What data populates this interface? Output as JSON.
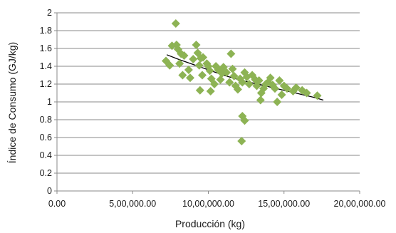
{
  "chart_data": {
    "type": "scatter",
    "xlabel": "Producción (kg)",
    "ylabel": "Índice de Consumo (GJ/kg)",
    "xlim": [
      0,
      2000000
    ],
    "ylim": [
      0,
      2
    ],
    "x_ticks": [
      0,
      500000,
      1000000,
      1500000,
      2000000
    ],
    "x_tick_labels": [
      "0.00",
      "5,00,000.00",
      "10,00,000.00",
      "15,00,000.00",
      "20,00,000.00"
    ],
    "y_ticks": [
      0,
      0.2,
      0.4,
      0.6,
      0.8,
      1,
      1.2,
      1.4,
      1.6,
      1.8,
      2
    ],
    "y_tick_labels": [
      "0",
      "0.2",
      "0.4",
      "0.6",
      "0.8",
      "1",
      "1.2",
      "1.4",
      "1.6",
      "1.8",
      "2"
    ],
    "grid": "horizontal",
    "legend": "none",
    "marker": "diamond",
    "marker_color": "#8db354",
    "trendline_color": "#000000",
    "points": [
      [
        785000,
        1.88
      ],
      [
        760000,
        1.63
      ],
      [
        790000,
        1.64
      ],
      [
        720000,
        1.46
      ],
      [
        745000,
        1.41
      ],
      [
        800000,
        1.59
      ],
      [
        820000,
        1.54
      ],
      [
        840000,
        1.52
      ],
      [
        810000,
        1.43
      ],
      [
        830000,
        1.3
      ],
      [
        870000,
        1.36
      ],
      [
        880000,
        1.27
      ],
      [
        900000,
        1.48
      ],
      [
        920000,
        1.64
      ],
      [
        930000,
        1.55
      ],
      [
        950000,
        1.49
      ],
      [
        965000,
        1.5
      ],
      [
        940000,
        1.41
      ],
      [
        960000,
        1.3
      ],
      [
        945000,
        1.13
      ],
      [
        990000,
        1.43
      ],
      [
        1000000,
        1.4
      ],
      [
        1010000,
        1.35
      ],
      [
        1020000,
        1.26
      ],
      [
        1040000,
        1.2
      ],
      [
        1015000,
        1.12
      ],
      [
        1050000,
        1.4
      ],
      [
        1065000,
        1.36
      ],
      [
        1080000,
        1.25
      ],
      [
        1090000,
        1.32
      ],
      [
        1100000,
        1.39
      ],
      [
        1120000,
        1.33
      ],
      [
        1140000,
        1.22
      ],
      [
        1160000,
        1.37
      ],
      [
        1170000,
        1.29
      ],
      [
        1180000,
        1.18
      ],
      [
        1150000,
        1.54
      ],
      [
        1195000,
        1.14
      ],
      [
        1210000,
        1.26
      ],
      [
        1225000,
        1.22
      ],
      [
        1240000,
        1.33
      ],
      [
        1255000,
        1.28
      ],
      [
        1270000,
        1.2
      ],
      [
        1290000,
        1.3
      ],
      [
        1310000,
        1.25
      ],
      [
        1320000,
        1.18
      ],
      [
        1335000,
        1.24
      ],
      [
        1350000,
        1.1
      ],
      [
        1345000,
        1.02
      ],
      [
        1365000,
        1.15
      ],
      [
        1380000,
        1.2
      ],
      [
        1395000,
        1.22
      ],
      [
        1410000,
        1.27
      ],
      [
        1425000,
        1.19
      ],
      [
        1440000,
        1.15
      ],
      [
        1455000,
        1.0
      ],
      [
        1470000,
        1.24
      ],
      [
        1485000,
        1.08
      ],
      [
        1500000,
        1.18
      ],
      [
        1520000,
        1.15
      ],
      [
        1560000,
        1.12
      ],
      [
        1580000,
        1.16
      ],
      [
        1620000,
        1.13
      ],
      [
        1650000,
        1.1
      ],
      [
        1720000,
        1.07
      ],
      [
        1225000,
        0.84
      ],
      [
        1240000,
        0.79
      ],
      [
        1220000,
        0.56
      ]
    ],
    "trendline": [
      [
        725000,
        1.53
      ],
      [
        800000,
        1.48
      ],
      [
        900000,
        1.42
      ],
      [
        1000000,
        1.36
      ],
      [
        1100000,
        1.3
      ],
      [
        1200000,
        1.25
      ],
      [
        1300000,
        1.21
      ],
      [
        1400000,
        1.17
      ],
      [
        1500000,
        1.13
      ],
      [
        1600000,
        1.09
      ],
      [
        1700000,
        1.05
      ],
      [
        1760000,
        1.02
      ]
    ]
  }
}
